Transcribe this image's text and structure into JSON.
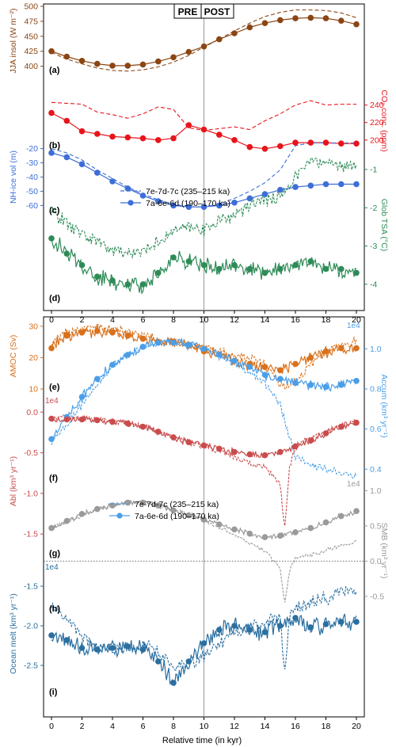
{
  "header": {
    "pre": "PRE",
    "post": "POST"
  },
  "xlabel": "Relative time (in kyr)",
  "x_ticks": [
    0,
    2,
    4,
    6,
    8,
    10,
    12,
    14,
    16,
    18,
    20
  ],
  "legend": {
    "dashed_label": "7e-7d-7c (235–215 ka)",
    "solid_label": "7a-6e-6d (190–170 ka)"
  },
  "chart_data": [
    {
      "type": "line",
      "panel": "(a)",
      "ylabel": "JJA insol (W m⁻²)",
      "axis_side": "left",
      "color": "#8B4513",
      "ylim": [
        385,
        500
      ],
      "yticks": [
        400,
        425,
        450,
        475,
        500
      ],
      "series": [
        {
          "style": "solid",
          "markers": true,
          "x": [
            0,
            1,
            2,
            3,
            4,
            5,
            6,
            7,
            8,
            9,
            10,
            11,
            12,
            13,
            14,
            15,
            16,
            17,
            18,
            19,
            20
          ],
          "values": [
            425,
            416,
            409,
            404,
            401,
            401,
            403,
            408,
            415,
            424,
            433,
            445,
            455,
            465,
            472,
            477,
            480,
            481,
            480,
            476,
            470
          ]
        },
        {
          "style": "dashed",
          "markers": false,
          "x": [
            0,
            1,
            2,
            3,
            4,
            5,
            6,
            7,
            8,
            9,
            10,
            11,
            12,
            13,
            14,
            15,
            16,
            17,
            18,
            19,
            20
          ],
          "values": [
            423,
            412,
            404,
            397,
            393,
            392,
            394,
            399,
            407,
            418,
            432,
            445,
            459,
            472,
            483,
            490,
            494,
            494,
            493,
            489,
            481
          ]
        }
      ]
    },
    {
      "type": "line",
      "panel": "(b)",
      "ylabel": "CO₂ conc. (ppm)",
      "axis_side": "right",
      "color": "#E8141B",
      "ylim": [
        188,
        256
      ],
      "yticks": [
        200,
        220,
        240
      ],
      "series": [
        {
          "style": "solid",
          "markers": true,
          "x": [
            0,
            1,
            2,
            3,
            4,
            5,
            6,
            7,
            8,
            9,
            10,
            11,
            12,
            13,
            14,
            15,
            16,
            17,
            18,
            19,
            20
          ],
          "values": [
            231,
            222,
            210,
            207,
            204,
            203,
            202,
            200,
            202,
            217,
            212,
            206,
            200,
            192,
            190,
            193,
            197,
            197,
            197,
            196,
            196
          ]
        },
        {
          "style": "dashed",
          "markers": false,
          "x": [
            0,
            1,
            2,
            3,
            4,
            5,
            6,
            7,
            8,
            9,
            10,
            11,
            12,
            13,
            14,
            15,
            16,
            17,
            18,
            19,
            20
          ],
          "values": [
            243,
            242,
            241,
            232,
            229,
            225,
            230,
            238,
            235,
            214,
            211,
            213,
            215,
            212,
            222,
            230,
            240,
            245,
            240,
            241,
            241
          ]
        }
      ]
    },
    {
      "type": "line",
      "panel": "(c)",
      "ylabel": "NH-ice vol (m)",
      "axis_side": "left",
      "color": "#3D6ED8",
      "ylim": [
        -67,
        -13
      ],
      "yticks": [
        -20,
        -30,
        -40,
        -50,
        -60
      ],
      "series": [
        {
          "style": "solid",
          "markers": true,
          "x": [
            0,
            1,
            2,
            3,
            4,
            5,
            6,
            7,
            8,
            9,
            10,
            11,
            12,
            13,
            14,
            15,
            16,
            17,
            18,
            19,
            20
          ],
          "values": [
            -23,
            -26,
            -31,
            -37,
            -43,
            -48,
            -53,
            -57,
            -60,
            -61,
            -61,
            -60,
            -58,
            -55,
            -52,
            -49,
            -47,
            -46,
            -45,
            -45,
            -45
          ]
        },
        {
          "style": "dashed",
          "markers": false,
          "x": [
            0,
            1,
            2,
            3,
            4,
            5,
            6,
            7,
            8,
            9,
            10,
            11,
            12,
            13,
            14,
            15,
            16,
            17,
            18,
            19,
            20
          ],
          "values": [
            -20,
            -23,
            -28,
            -35,
            -41,
            -47,
            -52,
            -56,
            -59,
            -61,
            -61,
            -59,
            -55,
            -50,
            -44,
            -35,
            -18,
            -16,
            -16,
            -16,
            -16
          ]
        }
      ]
    },
    {
      "type": "line",
      "panel": "(d)",
      "ylabel": "Glob TSA (°C)",
      "axis_side": "right",
      "color": "#2E8B57",
      "ylim": [
        -4.5,
        -0.4
      ],
      "yticks": [
        -1,
        -2,
        -3,
        -4
      ],
      "series": [
        {
          "style": "solid",
          "markers": true,
          "x": [
            0,
            1,
            2,
            3,
            4,
            5,
            6,
            7,
            8,
            9,
            10,
            11,
            12,
            13,
            14,
            15,
            16,
            17,
            18,
            19,
            20
          ],
          "values": [
            -2.8,
            -3.2,
            -3.5,
            -3.8,
            -3.9,
            -4.0,
            -4.0,
            -3.7,
            -3.3,
            -3.4,
            -3.5,
            -3.6,
            -3.5,
            -3.6,
            -3.7,
            -3.6,
            -3.5,
            -3.4,
            -3.6,
            -3.6,
            -3.7
          ]
        },
        {
          "style": "dashed",
          "markers": false,
          "x": [
            0,
            1,
            2,
            3,
            4,
            5,
            6,
            7,
            8,
            9,
            10,
            11,
            12,
            13,
            14,
            15,
            16,
            17,
            18,
            19,
            20
          ],
          "values": [
            -2.1,
            -2.4,
            -2.7,
            -2.9,
            -3.1,
            -3.2,
            -3.1,
            -2.9,
            -2.6,
            -2.5,
            -2.6,
            -2.3,
            -2.2,
            -1.9,
            -1.8,
            -1.7,
            -1.2,
            -0.8,
            -0.8,
            -0.9,
            -0.9
          ]
        }
      ]
    },
    {
      "type": "line",
      "panel": "(e)",
      "ylabel": "AMOC (Sv)",
      "axis_side": "left",
      "color": "#D9711C",
      "ylim": [
        9,
        32
      ],
      "yticks": [
        10,
        20,
        30
      ],
      "series": [
        {
          "style": "solid",
          "markers": true,
          "x": [
            0,
            1,
            2,
            3,
            4,
            5,
            6,
            7,
            8,
            9,
            10,
            11,
            12,
            13,
            14,
            15,
            16,
            17,
            18,
            19,
            20
          ],
          "values": [
            23,
            27,
            28,
            28.5,
            28,
            27,
            26,
            25,
            25,
            24,
            22,
            21,
            19,
            18,
            17,
            16,
            18,
            20,
            22,
            23,
            23
          ]
        },
        {
          "style": "dashed",
          "markers": false,
          "x": [
            0,
            1,
            2,
            3,
            4,
            5,
            6,
            7,
            8,
            9,
            10,
            11,
            12,
            13,
            14,
            15,
            16,
            17,
            18,
            19,
            20
          ],
          "values": [
            25,
            28,
            29,
            30,
            29,
            28,
            27,
            26,
            25,
            24,
            23,
            22,
            21,
            20,
            18,
            11,
            12,
            18,
            22,
            24,
            25
          ]
        }
      ]
    },
    {
      "type": "line",
      "panel": "(f)",
      "ylabel": "Accum (km³ yr⁻¹)",
      "axis_side": "right",
      "color": "#4A9EE8",
      "ylim": [
        0.33,
        1.1
      ],
      "yticks": [
        0.4,
        0.6,
        0.8,
        1.0
      ],
      "multiplier": "1e4",
      "series": [
        {
          "style": "solid",
          "markers": true,
          "x": [
            0,
            1,
            2,
            3,
            4,
            5,
            6,
            7,
            8,
            9,
            10,
            11,
            12,
            13,
            14,
            15,
            16,
            17,
            18,
            19,
            20
          ],
          "values": [
            0.55,
            0.66,
            0.76,
            0.85,
            0.92,
            0.97,
            1.01,
            1.03,
            1.03,
            1.02,
            1.0,
            0.97,
            0.94,
            0.91,
            0.87,
            0.85,
            0.83,
            0.82,
            0.81,
            0.82,
            0.84
          ]
        },
        {
          "style": "dashed",
          "markers": false,
          "x": [
            0,
            1,
            2,
            3,
            4,
            5,
            6,
            7,
            8,
            9,
            10,
            11,
            12,
            13,
            14,
            15,
            16,
            17,
            18,
            19,
            20
          ],
          "values": [
            0.53,
            0.62,
            0.72,
            0.82,
            0.91,
            0.97,
            1.01,
            1.03,
            1.04,
            1.02,
            1.0,
            0.96,
            0.92,
            0.88,
            0.83,
            0.72,
            0.46,
            0.42,
            0.4,
            0.38,
            0.37
          ]
        }
      ]
    },
    {
      "type": "line",
      "panel": "(g)",
      "ylabel": "Abl (km³ yr⁻¹)",
      "axis_side": "left",
      "color": "#C94C4C",
      "ylim": [
        -1.8,
        0.1
      ],
      "yticks": [
        0.0,
        -0.5,
        -1.0,
        -1.5
      ],
      "multiplier": "1e4",
      "series": [
        {
          "style": "solid",
          "markers": true,
          "x": [
            0,
            1,
            2,
            3,
            4,
            5,
            6,
            7,
            8,
            9,
            10,
            11,
            12,
            13,
            14,
            15,
            16,
            17,
            18,
            19,
            20
          ],
          "values": [
            -0.08,
            -0.09,
            -0.09,
            -0.1,
            -0.12,
            -0.14,
            -0.18,
            -0.24,
            -0.31,
            -0.37,
            -0.41,
            -0.45,
            -0.49,
            -0.52,
            -0.53,
            -0.49,
            -0.42,
            -0.35,
            -0.26,
            -0.18,
            -0.13
          ]
        },
        {
          "style": "dashed",
          "markers": false,
          "x": [
            0,
            1,
            2,
            3,
            4,
            5,
            6,
            7,
            8,
            9,
            10,
            11,
            12,
            13,
            14,
            15,
            15.3,
            15.6,
            16,
            17,
            18,
            19,
            20
          ],
          "values": [
            -0.06,
            -0.07,
            -0.08,
            -0.09,
            -0.11,
            -0.13,
            -0.17,
            -0.23,
            -0.3,
            -0.36,
            -0.42,
            -0.48,
            -0.55,
            -0.62,
            -0.68,
            -0.9,
            -1.45,
            -0.7,
            -0.42,
            -0.3,
            -0.24,
            -0.16,
            -0.1
          ]
        }
      ]
    },
    {
      "type": "line",
      "panel": "(h)",
      "ylabel": "SMB (km³ yr⁻¹)",
      "axis_side": "right",
      "color": "#9A9A9A",
      "ylim": [
        -0.75,
        1.05
      ],
      "yticks": [
        1.0,
        0.5,
        0.0,
        -0.5
      ],
      "multiplier": "1e4",
      "reference_line": 0,
      "series": [
        {
          "style": "solid",
          "markers": true,
          "x": [
            0,
            1,
            2,
            3,
            4,
            5,
            6,
            7,
            8,
            9,
            10,
            11,
            12,
            13,
            14,
            15,
            16,
            17,
            18,
            19,
            20
          ],
          "values": [
            0.47,
            0.57,
            0.67,
            0.74,
            0.79,
            0.83,
            0.83,
            0.79,
            0.72,
            0.65,
            0.59,
            0.52,
            0.45,
            0.39,
            0.34,
            0.36,
            0.41,
            0.47,
            0.55,
            0.64,
            0.71
          ]
        },
        {
          "style": "dashed",
          "markers": false,
          "x": [
            0,
            1,
            2,
            3,
            4,
            5,
            6,
            7,
            8,
            9,
            10,
            11,
            12,
            13,
            14,
            15,
            15.3,
            15.6,
            16,
            17,
            18,
            19,
            20
          ],
          "values": [
            0.47,
            0.55,
            0.64,
            0.73,
            0.8,
            0.84,
            0.84,
            0.8,
            0.74,
            0.66,
            0.58,
            0.48,
            0.37,
            0.26,
            0.15,
            -0.1,
            -0.62,
            -0.15,
            0.05,
            0.08,
            0.15,
            0.22,
            0.27
          ]
        }
      ]
    },
    {
      "type": "line",
      "panel": "(i)",
      "ylabel": "Ocean melt (km³ yr⁻¹)",
      "axis_side": "left",
      "color": "#2A6FA0",
      "ylim": [
        -2.9,
        -1.3
      ],
      "yticks": [
        -1.5,
        -2.0,
        -2.5
      ],
      "multiplier": "1e4",
      "series": [
        {
          "style": "solid",
          "markers": true,
          "x": [
            0,
            1,
            2,
            3,
            4,
            5,
            6,
            7,
            8,
            9,
            10,
            11,
            12,
            13,
            14,
            15,
            16,
            17,
            18,
            19,
            20
          ],
          "values": [
            -2.12,
            -2.18,
            -2.28,
            -2.3,
            -2.28,
            -2.26,
            -2.3,
            -2.45,
            -2.72,
            -2.45,
            -2.22,
            -2.05,
            -2.0,
            -2.05,
            -2.08,
            -2.0,
            -1.9,
            -2.02,
            -1.98,
            -1.95,
            -1.95
          ]
        },
        {
          "style": "dashed",
          "markers": false,
          "x": [
            0,
            1,
            2,
            3,
            4,
            5,
            6,
            7,
            8,
            9,
            10,
            11,
            12,
            13,
            14,
            15,
            15.3,
            15.6,
            16,
            17,
            18,
            19,
            20
          ],
          "values": [
            -1.72,
            -1.92,
            -2.15,
            -2.25,
            -2.3,
            -2.28,
            -2.25,
            -2.35,
            -2.52,
            -2.48,
            -2.4,
            -2.25,
            -2.1,
            -2.05,
            -1.95,
            -1.9,
            -2.62,
            -1.88,
            -1.8,
            -1.7,
            -1.65,
            -1.58,
            -1.58
          ]
        }
      ]
    }
  ]
}
